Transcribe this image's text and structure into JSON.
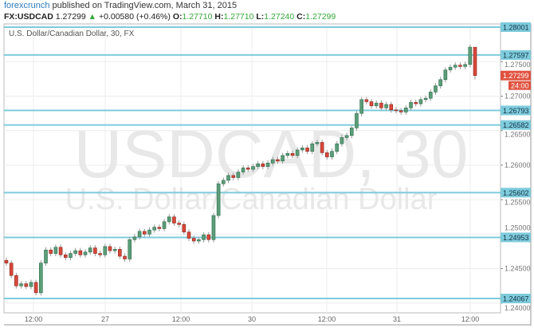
{
  "header": {
    "author": "forexcrunch",
    "published": "published on TradingView.com, March 31, 2015"
  },
  "quote": {
    "symbol": "FX:USDCAD",
    "last": "1.27299",
    "change": "+0.00580 (+0.46%)",
    "o_label": "O:",
    "o": "1.27710",
    "h_label": "H:",
    "h": "1.27710",
    "l_label": "L:",
    "l": "1.27240",
    "c_label": "C:",
    "c": "1.27299"
  },
  "chart_data": {
    "type": "candlestick",
    "title": "U.S. Dollar/Canadian Dollar, 30, FX",
    "watermark": "USDCAD, 30",
    "watermark_sub": "U.S. Dollar/Canadian Dollar",
    "ylim": [
      1.2391,
      1.2805
    ],
    "y_ticks": [
      "1.27500",
      "1.27000",
      "1.26500",
      "1.26000",
      "1.25500",
      "1.25000",
      "1.24500",
      "1.24000"
    ],
    "x_ticks": [
      "12:00",
      "27",
      "12:00",
      "30",
      "12:00",
      "31",
      "12:00"
    ],
    "closes": [
      1.2458,
      1.244,
      1.2425,
      1.2428,
      1.2424,
      1.243,
      1.2415,
      1.2458,
      1.2477,
      1.2472,
      1.2481,
      1.247,
      1.2466,
      1.2472,
      1.2476,
      1.247,
      1.2474,
      1.248,
      1.2472,
      1.247,
      1.2482,
      1.2476,
      1.2478,
      1.2468,
      1.2464,
      1.2492,
      1.2496,
      1.2504,
      1.25,
      1.2506,
      1.251,
      1.2508,
      1.2518,
      1.2525,
      1.2516,
      1.2514,
      1.2503,
      1.2494,
      1.249,
      1.2492,
      1.2499,
      1.2492,
      1.2527,
      1.2573,
      1.2578,
      1.2585,
      1.2582,
      1.259,
      1.2596,
      1.2594,
      1.2598,
      1.2602,
      1.2598,
      1.2603,
      1.2608,
      1.2606,
      1.2614,
      1.2617,
      1.2614,
      1.2622,
      1.2625,
      1.262,
      1.2631,
      1.2633,
      1.2618,
      1.2612,
      1.262,
      1.2631,
      1.264,
      1.2643,
      1.2654,
      1.2675,
      1.2695,
      1.2692,
      1.2686,
      1.269,
      1.2683,
      1.2688,
      1.268,
      1.2679,
      1.2677,
      1.2683,
      1.2691,
      1.2689,
      1.2695,
      1.2697,
      1.2706,
      1.2715,
      1.2724,
      1.2738,
      1.2742,
      1.2745,
      1.2743,
      1.2746,
      1.2771
    ],
    "last_candle": {
      "open": 1.2771,
      "high": 1.2771,
      "low": 1.2724,
      "close": 1.27299
    },
    "levels": [
      "1.28001",
      "1.27597",
      "1.26793",
      "1.26582",
      "1.25602",
      "1.24953",
      "1.24067"
    ],
    "last_price_label": "1.27299",
    "countdown": "24:00",
    "colors": {
      "up": "#5b9e79",
      "down": "#d9473a",
      "level": "#7ecbdc",
      "last": "#e0523f"
    }
  }
}
